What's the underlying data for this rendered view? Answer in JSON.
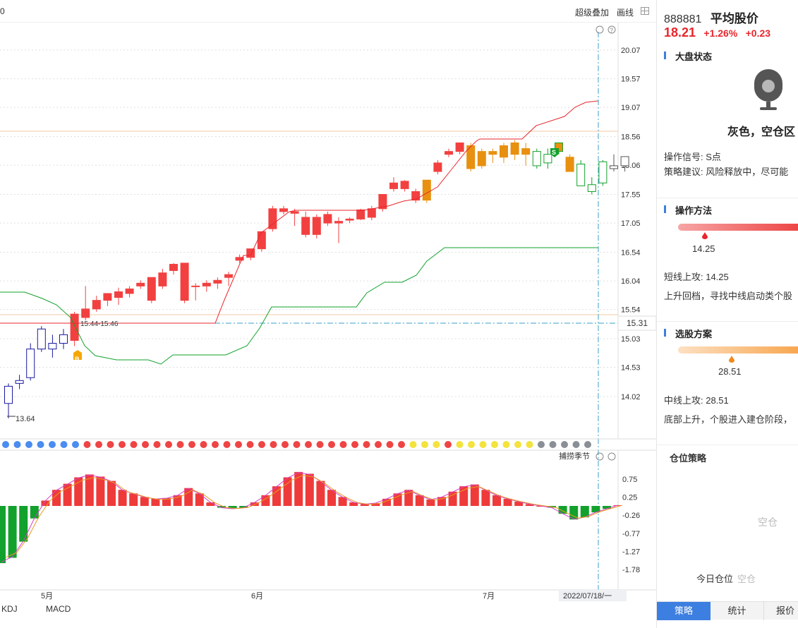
{
  "toolbar": {
    "super_overlay_label": "超级叠加",
    "draw_line_label": "画线",
    "edge_char": "0"
  },
  "chart": {
    "price_ticks": [
      "20.07",
      "19.57",
      "19.07",
      "18.56",
      "18.06",
      "17.55",
      "17.05",
      "16.54",
      "16.04",
      "15.54",
      "15.03",
      "14.53",
      "14.02"
    ],
    "current_price_tag": "15.31",
    "low_annotation": "13.64",
    "range_annotation": "15.44-15.46",
    "buy_marker": "B",
    "sell_marker": "S",
    "season_label": "捕捞季节",
    "macd_ticks": [
      "0.75",
      "0.25",
      "-0.26",
      "-0.77",
      "-1.27",
      "-1.78"
    ],
    "month_labels": [
      "5月",
      "6月",
      "7月"
    ],
    "date_label": "2022/07/18/一",
    "colors": {
      "up": "#f24040",
      "down": "#12a12c",
      "orange": "#e8900f",
      "blue_candle": "#1a1a9e",
      "grid": "#e0e0e0",
      "crosshair": "#3aa0c8"
    }
  },
  "bottom_tabs": [
    "KDJ",
    "MACD"
  ],
  "panel": {
    "code": "888881",
    "name": "平均股价",
    "price": "18.21",
    "pct_change": "+1.26%",
    "change": "+0.23",
    "market_state": {
      "title": "大盘状态",
      "state": "灰色，空仓区",
      "lamp_icon": "traffic-lamp-gray"
    },
    "signal": "操作信号: S点",
    "advice": "策略建议: 风险释放中，尽可能",
    "method": {
      "title": "操作方法",
      "value": "14.25",
      "line1": "短线上攻:  14.25",
      "line2": "上升回档，寻找中线启动类个股"
    },
    "selection": {
      "title": "选股方案",
      "value": "28.51",
      "line1": "中线上攻:  28.51",
      "line2": "底部上升，个股进入建仓阶段，"
    },
    "position": {
      "title": "仓位策略",
      "empty_label": "空仓",
      "today_label": "今日仓位",
      "today_value": "空仓"
    },
    "tabs": [
      "策略",
      "统计",
      "报价"
    ]
  },
  "chart_data": {
    "type": "candlestick",
    "note_series": "candles: [open, high, low, close, color]",
    "candles": [
      [
        13.9,
        14.25,
        13.64,
        14.2,
        "blue"
      ],
      [
        14.3,
        14.4,
        14.15,
        14.25,
        "blue"
      ],
      [
        14.35,
        14.95,
        14.3,
        14.85,
        "blue"
      ],
      [
        14.85,
        15.25,
        14.8,
        15.2,
        "blue"
      ],
      [
        14.85,
        15.1,
        14.7,
        14.95,
        "blue"
      ],
      [
        14.95,
        15.2,
        14.85,
        15.1,
        "blue"
      ],
      [
        15.46,
        15.5,
        14.9,
        15.0,
        "red"
      ],
      [
        15.4,
        15.95,
        15.35,
        15.55,
        "red"
      ],
      [
        15.55,
        15.78,
        15.5,
        15.7,
        "red"
      ],
      [
        15.7,
        15.82,
        15.6,
        15.82,
        "red"
      ],
      [
        15.75,
        15.92,
        15.62,
        15.85,
        "red"
      ],
      [
        15.82,
        15.95,
        15.75,
        15.9,
        "red"
      ],
      [
        15.95,
        16.05,
        15.9,
        16.0,
        "red"
      ],
      [
        15.7,
        16.1,
        15.65,
        16.1,
        "red"
      ],
      [
        15.95,
        16.25,
        15.9,
        16.18,
        "red"
      ],
      [
        16.22,
        16.35,
        16.15,
        16.33,
        "red"
      ],
      [
        15.7,
        16.35,
        15.65,
        16.35,
        "red"
      ],
      [
        15.95,
        16.0,
        15.7,
        15.95,
        "red"
      ],
      [
        15.95,
        16.05,
        15.85,
        16.0,
        "red"
      ],
      [
        16.0,
        16.1,
        15.9,
        16.05,
        "red"
      ],
      [
        16.1,
        16.2,
        15.95,
        16.15,
        "red"
      ],
      [
        16.4,
        16.5,
        16.35,
        16.45,
        "red"
      ],
      [
        16.45,
        16.6,
        16.4,
        16.6,
        "red"
      ],
      [
        16.6,
        16.9,
        16.55,
        16.9,
        "red"
      ],
      [
        16.95,
        17.35,
        16.9,
        17.3,
        "red"
      ],
      [
        17.25,
        17.35,
        17.2,
        17.3,
        "red"
      ],
      [
        17.25,
        17.3,
        17.0,
        17.22,
        "red"
      ],
      [
        16.85,
        17.25,
        16.8,
        17.15,
        "red"
      ],
      [
        16.85,
        17.2,
        16.78,
        17.15,
        "red"
      ],
      [
        17.05,
        17.25,
        17.0,
        17.2,
        "red"
      ],
      [
        17.05,
        17.15,
        16.7,
        17.08,
        "red"
      ],
      [
        17.1,
        17.15,
        17.05,
        17.12,
        "red"
      ],
      [
        17.12,
        17.3,
        17.1,
        17.28,
        "red"
      ],
      [
        17.15,
        17.35,
        17.1,
        17.3,
        "red"
      ],
      [
        17.3,
        17.55,
        17.25,
        17.55,
        "red"
      ],
      [
        17.75,
        17.85,
        17.6,
        17.65,
        "red"
      ],
      [
        17.65,
        17.8,
        17.6,
        17.78,
        "red"
      ],
      [
        17.45,
        17.65,
        17.4,
        17.6,
        "red"
      ],
      [
        17.45,
        17.8,
        17.4,
        17.8,
        "orange"
      ],
      [
        17.95,
        18.15,
        17.9,
        18.1,
        "red"
      ],
      [
        18.25,
        18.35,
        18.2,
        18.3,
        "red"
      ],
      [
        18.3,
        18.45,
        18.25,
        18.45,
        "red"
      ],
      [
        18.0,
        18.45,
        17.95,
        18.4,
        "orange"
      ],
      [
        18.05,
        18.35,
        18.0,
        18.3,
        "orange"
      ],
      [
        18.25,
        18.35,
        18.1,
        18.3,
        "orange"
      ],
      [
        18.2,
        18.45,
        18.1,
        18.4,
        "orange"
      ],
      [
        18.25,
        18.5,
        18.15,
        18.45,
        "orange"
      ],
      [
        18.35,
        18.45,
        18.05,
        18.25,
        "orange"
      ],
      [
        18.05,
        18.35,
        18.0,
        18.3,
        "hollow-green"
      ],
      [
        18.1,
        18.35,
        18.0,
        18.25,
        "hollow-green"
      ],
      [
        18.3,
        18.45,
        18.25,
        18.45,
        "hollow-green-orange"
      ],
      [
        18.2,
        18.25,
        17.95,
        17.95,
        "orange"
      ],
      [
        18.08,
        18.15,
        17.7,
        17.7,
        "hollow-green"
      ],
      [
        17.72,
        17.85,
        17.55,
        17.6,
        "hollow-green"
      ],
      [
        17.75,
        18.15,
        17.7,
        18.12,
        "hollow-green"
      ],
      [
        18.0,
        18.25,
        17.95,
        18.05,
        "white"
      ],
      [
        18.05,
        18.2,
        17.95,
        18.21,
        "white"
      ]
    ],
    "upper_band": [
      16.3,
      16.85,
      17.2,
      17.6,
      18.0,
      18.4,
      18.56,
      18.9,
      19.07
    ],
    "lower_band": [
      15.9,
      14.9,
      14.6,
      14.8,
      15.3,
      15.54,
      16.0,
      16.54
    ],
    "macd_hist": [
      -1.6,
      -1.45,
      -1.0,
      -0.35,
      0.15,
      0.45,
      0.62,
      0.8,
      0.88,
      0.82,
      0.7,
      0.45,
      0.35,
      0.25,
      0.2,
      0.22,
      0.3,
      0.5,
      0.35,
      0.1,
      -0.05,
      -0.08,
      -0.05,
      0.1,
      0.3,
      0.55,
      0.8,
      0.95,
      0.9,
      0.7,
      0.45,
      0.25,
      0.1,
      0.05,
      0.08,
      0.2,
      0.35,
      0.45,
      0.3,
      0.18,
      0.25,
      0.4,
      0.55,
      0.6,
      0.45,
      0.3,
      0.2,
      0.12,
      0.05,
      0.0,
      -0.05,
      -0.22,
      -0.38,
      -0.32,
      -0.18,
      -0.08,
      0.02
    ],
    "signal_dots": [
      "blue",
      "blue",
      "blue",
      "blue",
      "blue",
      "blue",
      "blue",
      "red",
      "red",
      "red",
      "red",
      "red",
      "red",
      "red",
      "red",
      "red",
      "red",
      "red",
      "red",
      "red",
      "red",
      "red",
      "red",
      "red",
      "red",
      "red",
      "red",
      "red",
      "red",
      "red",
      "red",
      "red",
      "red",
      "red",
      "red",
      "yellow",
      "yellow",
      "yellow",
      "red",
      "yellow",
      "yellow",
      "yellow",
      "yellow",
      "yellow",
      "yellow",
      "yellow",
      "gray",
      "gray",
      "gray",
      "gray",
      "gray"
    ]
  }
}
